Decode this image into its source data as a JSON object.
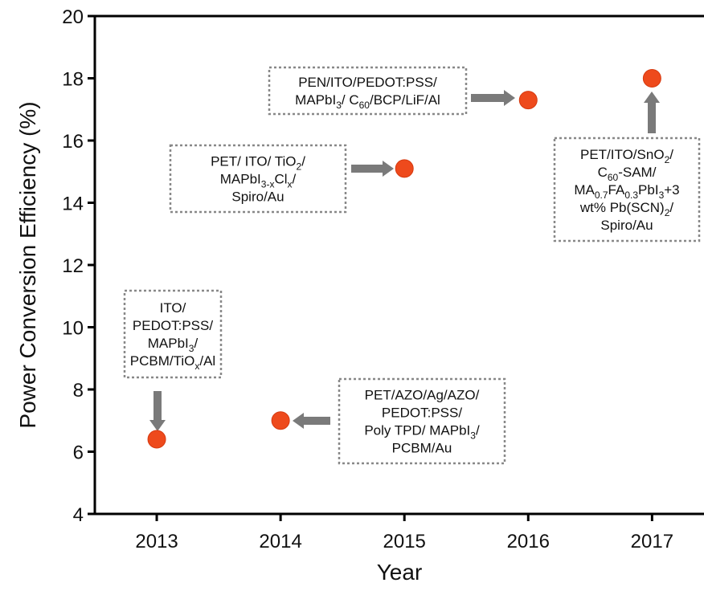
{
  "chart_data": {
    "type": "scatter",
    "x_label": "Year",
    "y_label": "Power Conversion Efficiency (%)",
    "x": [
      2013,
      2014,
      2015,
      2016,
      2017
    ],
    "values": [
      6.4,
      7.0,
      15.1,
      17.3,
      18.0
    ],
    "color": "#ee4a1c",
    "xlim": [
      2012.5,
      2017.4
    ],
    "xticks": [
      2013,
      2014,
      2015,
      2016,
      2017
    ],
    "ylim": [
      4,
      20
    ],
    "yticks": [
      4,
      6,
      8,
      10,
      12,
      14,
      16,
      18,
      20
    ],
    "annotations": [
      {
        "lines": [
          [
            "ITO/"
          ],
          [
            "PEDOT:PSS/"
          ],
          [
            "MAPbI",
            {
              "sub": "3"
            },
            "/"
          ],
          [
            "PCBM/TiO",
            {
              "sub": "x"
            },
            "/Al"
          ]
        ]
      },
      {
        "lines": [
          [
            "PET/AZO/Ag/AZO/"
          ],
          [
            "PEDOT:PSS/"
          ],
          [
            "Poly TPD/ MAPbI",
            {
              "sub": "3"
            },
            "/"
          ],
          [
            "PCBM/Au"
          ]
        ]
      },
      {
        "lines": [
          [
            "PET/ ITO/ TiO",
            {
              "sub": "2"
            },
            "/"
          ],
          [
            "MAPbI",
            {
              "sub": "3-x"
            },
            "Cl",
            {
              "sub": "x"
            },
            "/"
          ],
          [
            "Spiro/Au"
          ]
        ]
      },
      {
        "lines": [
          [
            "PEN/ITO/PEDOT:PSS/"
          ],
          [
            "MAPbI",
            {
              "sub": "3"
            },
            "/ C",
            {
              "sub": "60"
            },
            "/BCP/LiF/Al"
          ]
        ]
      },
      {
        "lines": [
          [
            "PET/ITO/SnO",
            {
              "sub": "2"
            },
            "/"
          ],
          [
            "C",
            {
              "sub": "60"
            },
            "-SAM/"
          ],
          [
            "MA",
            {
              "sub": "0.7"
            },
            "FA",
            {
              "sub": "0.3"
            },
            "PbI",
            {
              "sub": "3"
            },
            "+3"
          ],
          [
            "wt% Pb(SCN)",
            {
              "sub": "2"
            },
            "/"
          ],
          [
            "Spiro/Au"
          ]
        ]
      }
    ]
  }
}
